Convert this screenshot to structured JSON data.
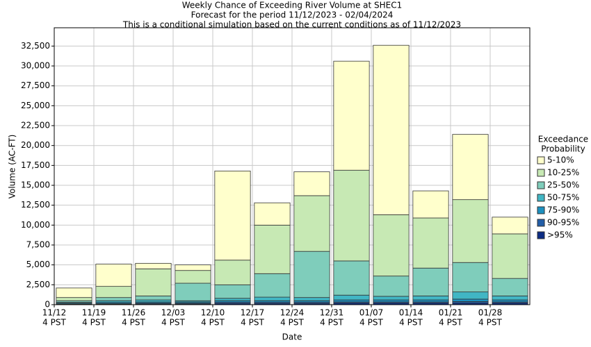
{
  "chart_data": {
    "type": "stacked_bar",
    "title": [
      "Weekly Chance of Exceeding River Volume at SHEC1",
      "Forecast for the period 11/12/2023 - 02/04/2024",
      "This is a conditional simulation based on the current conditions as of 11/12/2023"
    ],
    "x_label": "Date",
    "y_label": "Volume (AC-FT)",
    "legend_title": [
      "Exceedance",
      "Probability"
    ],
    "legend_position": "right",
    "categories": [
      "11/12",
      "11/19",
      "11/26",
      "12/03",
      "12/10",
      "12/17",
      "12/24",
      "12/31",
      "01/07",
      "01/14",
      "01/21",
      "01/28"
    ],
    "category_sublabels": [
      "4 PST",
      "4 PST",
      "4 PST",
      "4 PST",
      "4 PST",
      "4 PST",
      "4 PST",
      "4 PST",
      "4 PST",
      "4 PST",
      "4 PST",
      "4 PST"
    ],
    "series": [
      {
        "name": ">95%",
        "color": "#0c2c84",
        "values": [
          50,
          80,
          100,
          100,
          150,
          150,
          150,
          200,
          200,
          200,
          200,
          200
        ]
      },
      {
        "name": "90-95%",
        "color": "#225ea8",
        "values": [
          50,
          70,
          100,
          100,
          150,
          150,
          150,
          150,
          150,
          150,
          200,
          150
        ]
      },
      {
        "name": "75-90%",
        "color": "#1d91c0",
        "values": [
          100,
          150,
          150,
          150,
          200,
          200,
          200,
          250,
          250,
          250,
          300,
          250
        ]
      },
      {
        "name": "50-75%",
        "color": "#41b6c4",
        "values": [
          100,
          200,
          250,
          150,
          300,
          450,
          400,
          600,
          450,
          500,
          900,
          500
        ]
      },
      {
        "name": "25-50%",
        "color": "#7fcdbb",
        "values": [
          200,
          400,
          500,
          2200,
          1700,
          2950,
          5800,
          4300,
          2550,
          3500,
          3700,
          2200
        ]
      },
      {
        "name": "10-25%",
        "color": "#c7e9b4",
        "values": [
          400,
          1400,
          3400,
          1600,
          3100,
          6100,
          7000,
          11400,
          7700,
          6300,
          7900,
          5600
        ]
      },
      {
        "name": "5-10%",
        "color": "#ffffcc",
        "values": [
          1200,
          2800,
          700,
          700,
          11200,
          2800,
          3000,
          13700,
          21300,
          3400,
          8200,
          2100
        ]
      }
    ],
    "ylim": [
      0,
      34800
    ],
    "yticks": [
      0,
      {
        "value": 2500,
        "label": "2,500"
      },
      {
        "value": 5000,
        "label": "5,000"
      },
      {
        "value": 7500,
        "label": "7,500"
      },
      {
        "value": 10000,
        "label": "10,000"
      },
      {
        "value": 12500,
        "label": "12,500"
      },
      {
        "value": 15000,
        "label": "15,000"
      },
      {
        "value": 17500,
        "label": "17,500"
      },
      {
        "value": 20000,
        "label": "20,000"
      },
      {
        "value": 22500,
        "label": "22,500"
      },
      {
        "value": 25000,
        "label": "25,000"
      },
      {
        "value": 27500,
        "label": "27,500"
      },
      {
        "value": 30000,
        "label": "30,000"
      },
      {
        "value": 32500,
        "label": "32,500"
      }
    ],
    "grid": true
  }
}
